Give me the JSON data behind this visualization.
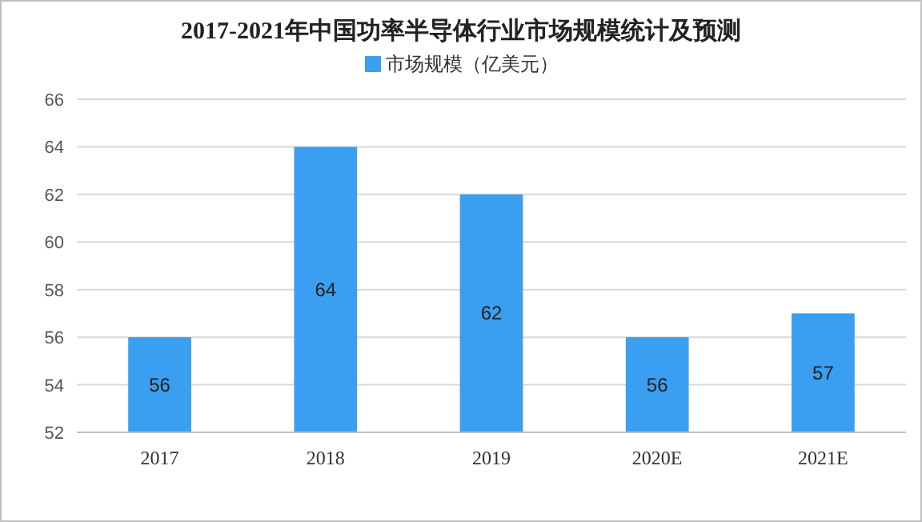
{
  "chart_data": {
    "type": "bar",
    "title": "2017-2021年中国功率半导体行业市场规模统计及预测",
    "categories": [
      "2017",
      "2018",
      "2019",
      "2020E",
      "2021E"
    ],
    "series": [
      {
        "name": "市场规模（亿美元）",
        "color": "#3a9ff0",
        "values": [
          56,
          64,
          62,
          56,
          57
        ]
      }
    ],
    "ylim": [
      52,
      66
    ],
    "yticks": [
      52,
      54,
      56,
      58,
      60,
      62,
      64,
      66
    ],
    "grid": "y",
    "legend": "top",
    "data_labels": true
  }
}
